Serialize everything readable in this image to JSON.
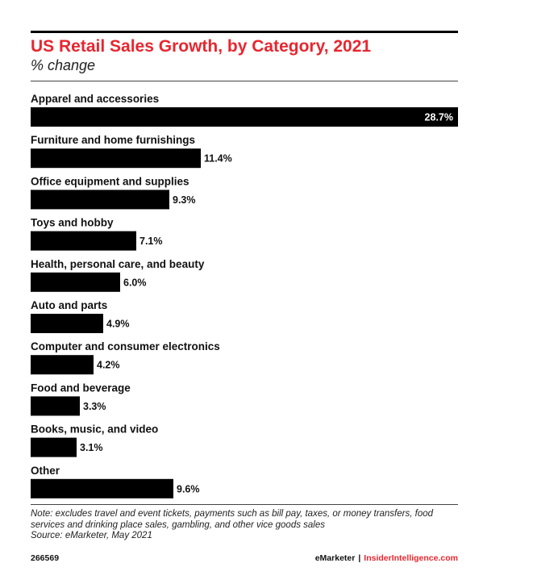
{
  "header": {
    "title": "US Retail Sales Growth, by Category, 2021",
    "subtitle": "% change"
  },
  "chart_data": {
    "type": "bar",
    "orientation": "horizontal",
    "title": "US Retail Sales Growth, by Category, 2021",
    "subtitle": "% change",
    "categories": [
      "Apparel and accessories",
      "Furniture and home furnishings",
      "Office equipment and supplies",
      "Toys and hobby",
      "Health, personal care, and beauty",
      "Auto and parts",
      "Computer and consumer electronics",
      "Food and beverage",
      "Books, music, and video",
      "Other"
    ],
    "values": [
      28.7,
      11.4,
      9.3,
      7.1,
      6.0,
      4.9,
      4.2,
      3.3,
      3.1,
      9.6
    ],
    "value_labels": [
      "28.7%",
      "11.4%",
      "9.3%",
      "7.1%",
      "6.0%",
      "4.9%",
      "4.2%",
      "3.3%",
      "3.1%",
      "9.6%"
    ],
    "bar_color": "#000000",
    "xlim": [
      0,
      28.7
    ],
    "grid": false,
    "legend": "none"
  },
  "footer": {
    "note": "Note: excludes travel and event tickets, payments such as bill pay, taxes, or money transfers, food services and drinking place sales, gambling, and other vice goods sales",
    "source": "Source: eMarketer, May 2021",
    "chart_id": "266569",
    "brand_emarketer": "eMarketer",
    "brand_separator": "|",
    "brand_insider": "InsiderIntelligence.com"
  },
  "colors": {
    "accent": "#e8262f",
    "bar": "#000000",
    "text": "#111111"
  }
}
